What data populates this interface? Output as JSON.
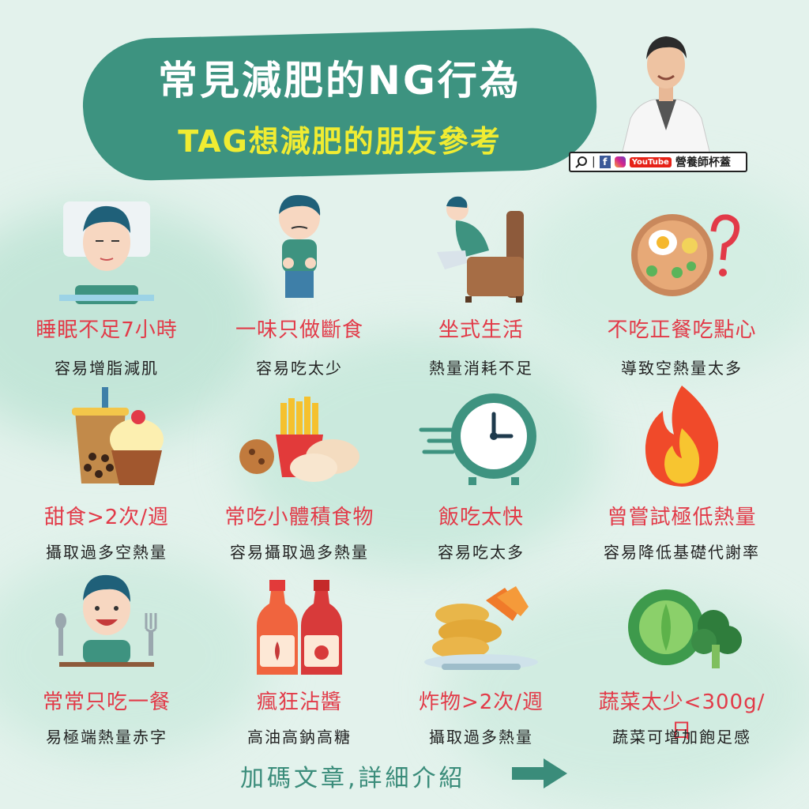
{
  "header": {
    "title": "常見減肥的NG行為",
    "subtitle": "TAG想減肥的朋友參考"
  },
  "social": {
    "handle": "營養師杯蓋",
    "youtube_label": "YouTube",
    "facebook_label": "f"
  },
  "items": [
    {
      "title": "睡眠不足7小時",
      "desc": "容易增脂減肌",
      "icon": "sleeping-person-icon"
    },
    {
      "title": "一味只做斷食",
      "desc": "容易吃太少",
      "icon": "hungry-person-icon"
    },
    {
      "title": "坐式生活",
      "desc": "熱量消耗不足",
      "icon": "sitting-person-icon"
    },
    {
      "title": "不吃正餐吃點心",
      "desc": "導致空熱量太多",
      "icon": "meal-question-icon"
    },
    {
      "title": "甜食>2次/週",
      "desc": "攝取過多空熱量",
      "icon": "bubble-tea-cupcake-icon"
    },
    {
      "title": "常吃小體積食物",
      "desc": "容易攝取過多熱量",
      "icon": "fries-dumplings-icon"
    },
    {
      "title": "飯吃太快",
      "desc": "容易吃太多",
      "icon": "clock-icon"
    },
    {
      "title": "曾嘗試極低熱量",
      "desc": "容易降低基礎代謝率",
      "icon": "fire-icon"
    },
    {
      "title": "常常只吃一餐",
      "desc": "易極端熱量赤字",
      "icon": "eating-boy-icon"
    },
    {
      "title": "瘋狂沾醬",
      "desc": "高油高鈉高糖",
      "icon": "sauce-bottles-icon"
    },
    {
      "title": "炸物>2次/週",
      "desc": "攝取過多熱量",
      "icon": "fried-food-icon"
    },
    {
      "title": "蔬菜太少<300g/日",
      "desc": "蔬菜可增加飽足感",
      "icon": "vegetables-icon"
    }
  ],
  "footer": {
    "text": "加碼文章,詳細介紹"
  },
  "colors": {
    "banner": "#3d9380",
    "title": "#ffffff",
    "subtitle": "#f0ec32",
    "item_title": "#e23a48",
    "footer": "#3a8c7a"
  }
}
